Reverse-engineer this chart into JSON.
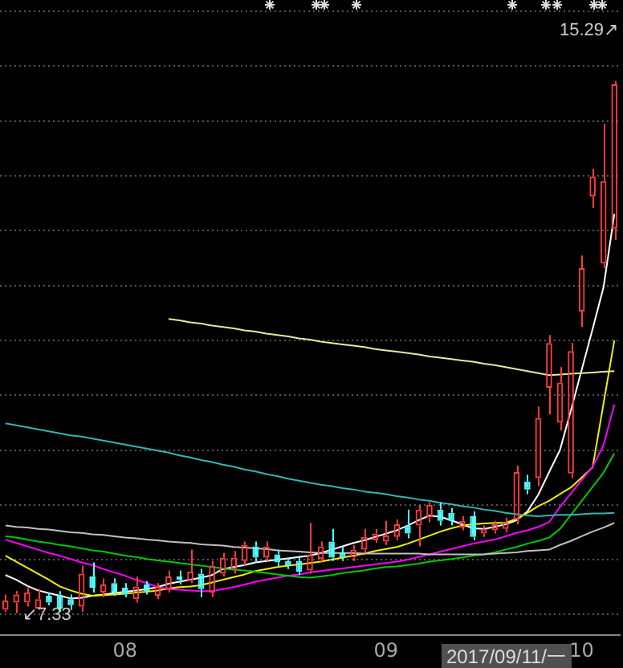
{
  "chart_data": {
    "type": "candlestick",
    "categories": [
      null,
      null,
      null,
      null,
      null,
      null,
      null,
      null,
      null,
      null,
      null,
      "08",
      null,
      null,
      null,
      null,
      null,
      null,
      null,
      null,
      null,
      null,
      null,
      null,
      null,
      null,
      null,
      null,
      null,
      null,
      null,
      null,
      null,
      null,
      null,
      "09",
      null,
      null,
      null,
      null,
      null,
      null,
      null,
      null,
      null,
      null,
      null,
      null,
      null,
      null,
      null,
      null,
      null,
      "10",
      null,
      null,
      null
    ],
    "ohlc": [
      [
        7.38,
        7.61,
        7.35,
        7.52
      ],
      [
        7.49,
        7.66,
        7.33,
        7.61
      ],
      [
        7.49,
        7.71,
        7.43,
        7.64
      ],
      [
        7.4,
        7.69,
        7.38,
        7.54
      ],
      [
        7.59,
        7.64,
        7.45,
        7.49
      ],
      [
        7.61,
        7.66,
        7.35,
        7.4
      ],
      [
        7.54,
        7.61,
        7.38,
        7.45
      ],
      [
        7.43,
        8.04,
        7.35,
        7.92
      ],
      [
        7.88,
        8.09,
        7.64,
        7.71
      ],
      [
        7.64,
        7.85,
        7.57,
        7.76
      ],
      [
        7.78,
        7.85,
        7.59,
        7.64
      ],
      [
        7.71,
        7.78,
        7.57,
        7.61
      ],
      [
        7.54,
        7.88,
        7.49,
        7.73
      ],
      [
        7.76,
        7.81,
        7.61,
        7.66
      ],
      [
        7.59,
        7.78,
        7.54,
        7.73
      ],
      [
        7.69,
        7.97,
        7.64,
        7.88
      ],
      [
        7.88,
        7.97,
        7.76,
        7.83
      ],
      [
        7.81,
        8.28,
        7.78,
        7.95
      ],
      [
        7.92,
        7.99,
        7.57,
        7.69
      ],
      [
        7.64,
        8.11,
        7.57,
        8.04
      ],
      [
        7.92,
        8.23,
        7.88,
        8.16
      ],
      [
        7.99,
        8.26,
        7.92,
        8.16
      ],
      [
        8.11,
        8.4,
        8.04,
        8.35
      ],
      [
        8.33,
        8.4,
        8.09,
        8.16
      ],
      [
        8.16,
        8.4,
        8.11,
        8.33
      ],
      [
        8.21,
        8.28,
        8.02,
        8.09
      ],
      [
        8.11,
        8.16,
        7.99,
        8.04
      ],
      [
        8.11,
        8.19,
        7.9,
        7.95
      ],
      [
        7.97,
        8.68,
        7.92,
        8.21
      ],
      [
        8.14,
        8.4,
        8.09,
        8.33
      ],
      [
        8.4,
        8.59,
        8.11,
        8.16
      ],
      [
        8.23,
        8.33,
        8.11,
        8.16
      ],
      [
        8.16,
        8.35,
        8.11,
        8.28
      ],
      [
        8.28,
        8.59,
        8.23,
        8.47
      ],
      [
        8.42,
        8.59,
        8.38,
        8.52
      ],
      [
        8.4,
        8.71,
        8.35,
        8.49
      ],
      [
        8.47,
        8.73,
        8.42,
        8.66
      ],
      [
        8.64,
        8.88,
        8.45,
        8.52
      ],
      [
        8.64,
        8.95,
        8.33,
        8.88
      ],
      [
        8.76,
        8.99,
        8.69,
        8.95
      ],
      [
        8.88,
        8.99,
        8.64,
        8.71
      ],
      [
        8.83,
        8.9,
        8.64,
        8.71
      ],
      [
        8.61,
        8.78,
        8.57,
        8.71
      ],
      [
        8.78,
        8.85,
        8.42,
        8.47
      ],
      [
        8.52,
        8.64,
        8.47,
        8.59
      ],
      [
        8.57,
        8.71,
        8.52,
        8.66
      ],
      [
        8.59,
        8.76,
        8.54,
        8.69
      ],
      [
        8.73,
        9.54,
        8.66,
        9.44
      ],
      [
        9.3,
        9.4,
        9.11,
        9.18
      ],
      [
        9.35,
        10.42,
        9.23,
        10.25
      ],
      [
        10.7,
        11.49,
        10.3,
        11.37
      ],
      [
        10.18,
        11.01,
        10.06,
        10.78
      ],
      [
        9.42,
        11.37,
        9.35,
        11.25
      ],
      [
        11.84,
        12.68,
        11.61,
        12.49
      ],
      [
        13.56,
        13.98,
        13.39,
        13.86
      ],
      [
        12.56,
        14.65,
        12.49,
        13.79
      ],
      [
        13.08,
        15.29,
        12.91,
        15.24
      ]
    ],
    "colors": [
      "#ff3c3c",
      "#ff3c3c",
      "#ff3c3c",
      "#ff3c3c",
      "#54fcfc",
      "#54fcfc",
      "#54fcfc",
      "#ff3c3c",
      "#54fcfc",
      "#ff3c3c",
      "#54fcfc",
      "#54fcfc",
      "#ff3c3c",
      "#54fcfc",
      "#ff3c3c",
      "#ff3c3c",
      "#54fcfc",
      "#ff3c3c",
      "#54fcfc",
      "#ff3c3c",
      "#ff3c3c",
      "#ff3c3c",
      "#ff3c3c",
      "#54fcfc",
      "#ff3c3c",
      "#54fcfc",
      "#54fcfc",
      "#54fcfc",
      "#ff3c3c",
      "#ff3c3c",
      "#54fcfc",
      "#54fcfc",
      "#ff3c3c",
      "#ff3c3c",
      "#ff3c3c",
      "#ff3c3c",
      "#ff3c3c",
      "#54fcfc",
      "#ff3c3c",
      "#ff3c3c",
      "#54fcfc",
      "#54fcfc",
      "#ff3c3c",
      "#54fcfc",
      "#ff3c3c",
      "#ff3c3c",
      "#ff3c3c",
      "#ff3c3c",
      "#54fcfc",
      "#ff3c3c",
      "#ff3c3c",
      "#ff3c3c",
      "#ff3c3c",
      "#ff3c3c",
      "#ff3c3c",
      "#ff3c3c",
      "#ff3c3c"
    ],
    "series": [
      {
        "type": "line",
        "color": "#33b5b5",
        "values": [
          10.17,
          10.14,
          10.11,
          10.08,
          10.05,
          10.02,
          9.99,
          9.97,
          9.94,
          9.91,
          9.88,
          9.85,
          9.82,
          9.79,
          9.76,
          9.73,
          9.69,
          9.66,
          9.62,
          9.59,
          9.55,
          9.52,
          9.48,
          9.45,
          9.41,
          9.38,
          9.34,
          9.31,
          9.28,
          9.25,
          9.23,
          9.2,
          9.18,
          9.15,
          9.13,
          9.11,
          9.08,
          9.06,
          9.03,
          9.01,
          8.98,
          8.96,
          8.93,
          8.91,
          8.88,
          8.86,
          8.83,
          8.81,
          8.79,
          8.78,
          8.79,
          8.8,
          8.8,
          8.81,
          8.82,
          8.82,
          8.83
        ]
      },
      {
        "type": "line",
        "color": "#e8e8a0",
        "values": [
          null,
          null,
          null,
          null,
          null,
          null,
          null,
          null,
          null,
          null,
          null,
          null,
          null,
          null,
          null,
          11.73,
          11.71,
          11.68,
          11.66,
          11.63,
          11.61,
          11.59,
          11.56,
          11.54,
          11.51,
          11.49,
          11.47,
          11.44,
          11.42,
          11.39,
          11.37,
          11.35,
          11.33,
          11.31,
          11.28,
          11.26,
          11.24,
          11.22,
          11.2,
          11.17,
          11.15,
          11.13,
          11.11,
          11.09,
          11.06,
          11.04,
          11.01,
          10.98,
          10.95,
          10.92,
          10.89,
          10.9,
          10.91,
          10.92,
          10.93,
          10.94,
          10.95
        ]
      },
      {
        "type": "line",
        "color": "#c0c0c0",
        "values": [
          8.64,
          8.62,
          8.61,
          8.59,
          8.58,
          8.56,
          8.54,
          8.53,
          8.51,
          8.5,
          8.48,
          8.46,
          8.45,
          8.43,
          8.42,
          8.4,
          8.39,
          8.38,
          8.36,
          8.35,
          8.34,
          8.32,
          8.31,
          8.3,
          8.29,
          8.27,
          8.26,
          8.25,
          8.24,
          8.23,
          8.23,
          8.23,
          8.23,
          8.22,
          8.22,
          8.22,
          8.22,
          8.22,
          8.22,
          8.21,
          8.21,
          8.21,
          8.21,
          8.21,
          8.21,
          8.22,
          8.23,
          8.24,
          8.26,
          8.27,
          8.28,
          8.35,
          8.41,
          8.48,
          8.55,
          8.61,
          8.68
        ]
      },
      {
        "type": "line",
        "color": "#00c800",
        "values": [
          8.48,
          8.46,
          8.43,
          8.4,
          8.38,
          8.35,
          8.33,
          8.3,
          8.27,
          8.25,
          8.22,
          8.19,
          8.17,
          8.14,
          8.12,
          8.1,
          8.08,
          8.06,
          8.04,
          8.02,
          8.0,
          7.98,
          7.97,
          7.95,
          7.93,
          7.91,
          7.89,
          7.87,
          7.86,
          7.88,
          7.9,
          7.93,
          7.95,
          7.97,
          8.0,
          8.02,
          8.03,
          8.05,
          8.07,
          8.1,
          8.12,
          8.14,
          8.16,
          8.19,
          8.21,
          8.24,
          8.28,
          8.32,
          8.37,
          8.41,
          8.46,
          8.59,
          8.8,
          9.01,
          9.22,
          9.43,
          9.72
        ]
      },
      {
        "type": "line",
        "color": "#ff00ff",
        "values": [
          8.43,
          8.38,
          8.33,
          8.28,
          8.23,
          8.19,
          8.14,
          8.09,
          8.05,
          7.99,
          7.94,
          7.89,
          7.83,
          7.78,
          7.72,
          7.69,
          7.68,
          7.67,
          7.66,
          7.66,
          7.69,
          7.72,
          7.76,
          7.8,
          7.83,
          7.86,
          7.89,
          7.91,
          7.94,
          7.96,
          7.98,
          8.0,
          8.02,
          8.04,
          8.06,
          8.08,
          8.1,
          8.13,
          8.17,
          8.21,
          8.25,
          8.29,
          8.33,
          8.37,
          8.4,
          8.43,
          8.48,
          8.53,
          8.57,
          8.62,
          8.69,
          8.92,
          9.12,
          9.32,
          9.52,
          9.84,
          10.45
        ]
      },
      {
        "type": "line",
        "color": "#f0f000",
        "values": [
          8.19,
          8.1,
          8.01,
          7.92,
          7.83,
          7.73,
          7.67,
          7.62,
          7.59,
          7.6,
          7.61,
          7.62,
          7.64,
          7.65,
          7.67,
          7.7,
          7.72,
          7.73,
          7.75,
          7.79,
          7.83,
          7.87,
          7.91,
          7.96,
          7.99,
          8.02,
          8.04,
          8.06,
          8.08,
          8.1,
          8.13,
          8.16,
          8.19,
          8.22,
          8.26,
          8.29,
          8.32,
          8.37,
          8.43,
          8.49,
          8.55,
          8.6,
          8.64,
          8.66,
          8.67,
          8.68,
          8.68,
          8.74,
          8.83,
          8.93,
          9.01,
          9.11,
          9.21,
          9.36,
          9.51,
          10.46,
          11.41
        ]
      },
      {
        "type": "line",
        "color": "#ffffff",
        "values": [
          7.9,
          7.83,
          7.74,
          7.67,
          7.63,
          7.59,
          7.55,
          7.56,
          7.59,
          7.61,
          7.63,
          7.65,
          7.67,
          7.69,
          7.72,
          7.77,
          7.8,
          7.83,
          7.86,
          7.9,
          7.99,
          8.02,
          8.05,
          8.09,
          8.11,
          8.13,
          8.15,
          8.17,
          8.19,
          8.23,
          8.28,
          8.33,
          8.38,
          8.42,
          8.47,
          8.52,
          8.57,
          8.64,
          8.72,
          8.79,
          8.77,
          8.72,
          8.66,
          8.6,
          8.59,
          8.62,
          8.66,
          8.72,
          8.85,
          9.1,
          9.44,
          9.77,
          10.36,
          10.97,
          11.58,
          12.2,
          13.3
        ]
      }
    ],
    "ylim": [
      7.0,
      16.5
    ],
    "yticks": [
      {
        "value": 7.31,
        "label": null
      },
      {
        "value": 8.13,
        "label": null
      },
      {
        "value": 8.95,
        "label": null
      },
      {
        "value": 9.77,
        "label": null
      },
      {
        "value": 10.59,
        "label": null
      },
      {
        "value": 11.41,
        "label": null
      },
      {
        "value": 12.23,
        "label": null
      },
      {
        "value": 13.05,
        "label": null
      },
      {
        "value": 13.87,
        "label": null
      },
      {
        "value": 14.69,
        "label": null
      },
      {
        "value": 15.51,
        "label": null
      },
      {
        "value": 16.33,
        "label": null
      }
    ],
    "grid": "y",
    "tick_labels": "x",
    "legend": false,
    "annotations": [
      "15.29↗",
      "↙7.33",
      "2017/09/11/一"
    ]
  }
}
